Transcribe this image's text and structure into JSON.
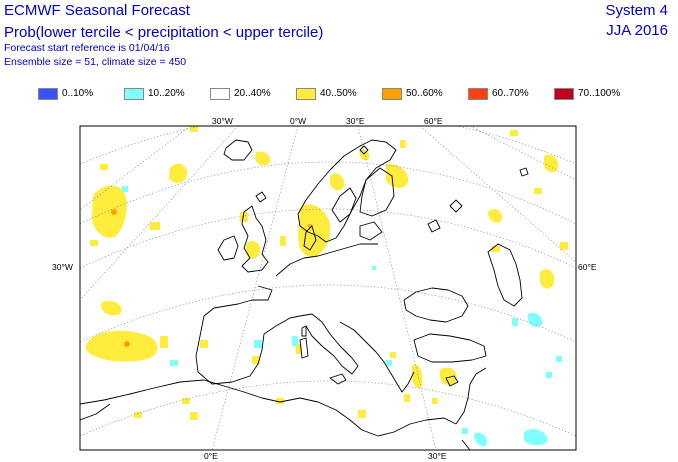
{
  "header": {
    "title": "ECMWF Seasonal Forecast",
    "subtitle": "Prob(lower tercile < precipitation < upper tercile)",
    "start_line": "Forecast start reference is 01/04/16",
    "ensemble_line": "Ensemble size = 51, climate size = 450",
    "system": "System 4",
    "period": "JJA 2016"
  },
  "legend": [
    {
      "label": "0..10%",
      "color": "#3355ff"
    },
    {
      "label": "10..20%",
      "color": "#80ffff"
    },
    {
      "label": "20..40%",
      "color": "#ffffff"
    },
    {
      "label": "40..50%",
      "color": "#ffec3c"
    },
    {
      "label": "50..60%",
      "color": "#ffa000"
    },
    {
      "label": "60..70%",
      "color": "#ff4010"
    },
    {
      "label": "70..100%",
      "color": "#c00018"
    }
  ],
  "axes": {
    "top": [
      "30°W",
      "0°W",
      "30°E",
      "60°E"
    ],
    "left": "30°W",
    "right": "60°E",
    "bottom": [
      "0°E",
      "30°E"
    ]
  },
  "colors": {
    "text": "#0000cc",
    "coast": "#000000",
    "grid": "#888888",
    "near_normal_40_50": "#ffec3c",
    "near_normal_50_60": "#ffa000",
    "below_10_20": "#80ffff"
  }
}
